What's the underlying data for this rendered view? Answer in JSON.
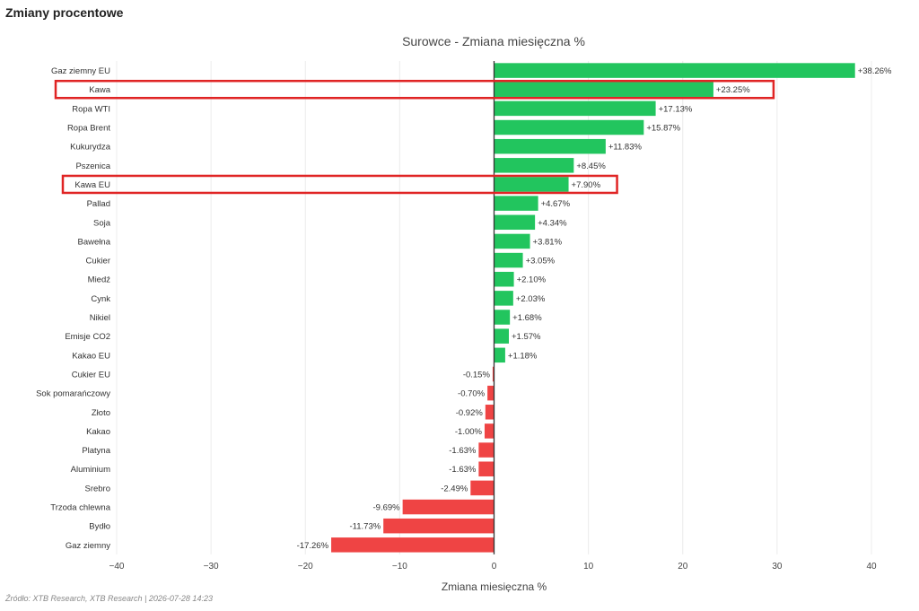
{
  "header": {
    "title": "Zmiany procentowe"
  },
  "footer": {
    "source": "Źródło: XTB Research, XTB Research | 2026-07-28 14:23"
  },
  "colors": {
    "positive": "#22c55e",
    "negative": "#ef4444",
    "highlight": "#e02424",
    "grid": "#ececec",
    "axis": "#333333"
  },
  "chart_data": {
    "type": "bar",
    "orientation": "horizontal",
    "title": "Surowce - Zmiana miesięczna %",
    "xlabel": "Zmiana miesięczna %",
    "ylabel": "",
    "xlim": [
      -40,
      40
    ],
    "xticks": [
      -40,
      -30,
      -20,
      -10,
      0,
      10,
      20,
      30,
      40
    ],
    "xtick_labels": [
      "−40",
      "−30",
      "−20",
      "−10",
      "0",
      "10",
      "20",
      "30",
      "40"
    ],
    "grid": true,
    "categories": [
      "Gaz ziemny EU",
      "Kawa",
      "Ropa WTI",
      "Ropa Brent",
      "Kukurydza",
      "Pszenica",
      "Kawa EU",
      "Pallad",
      "Soja",
      "Bawełna",
      "Cukier",
      "Miedź",
      "Cynk",
      "Nikiel",
      "Emisje CO2",
      "Kakao EU",
      "Cukier EU",
      "Sok pomarańczowy",
      "Złoto",
      "Kakao",
      "Platyna",
      "Aluminium",
      "Srebro",
      "Trzoda chlewna",
      "Bydło",
      "Gaz ziemny"
    ],
    "values": [
      38.26,
      23.25,
      17.13,
      15.87,
      11.83,
      8.45,
      7.9,
      4.67,
      4.34,
      3.81,
      3.05,
      2.1,
      2.03,
      1.68,
      1.57,
      1.18,
      -0.15,
      -0.7,
      -0.92,
      -1.0,
      -1.63,
      -1.63,
      -2.49,
      -9.69,
      -11.73,
      -17.26
    ],
    "value_labels": [
      "+38.26%",
      "+23.25%",
      "+17.13%",
      "+15.87%",
      "+11.83%",
      "+8.45%",
      "+7.90%",
      "+4.67%",
      "+4.34%",
      "+3.81%",
      "+3.05%",
      "+2.10%",
      "+2.03%",
      "+1.68%",
      "+1.57%",
      "+1.18%",
      "-0.15%",
      "-0.70%",
      "-0.92%",
      "-1.00%",
      "-1.63%",
      "-1.63%",
      "-2.49%",
      "-9.69%",
      "-11.73%",
      "-17.26%"
    ],
    "highlighted": [
      "Kawa",
      "Kawa EU"
    ]
  }
}
